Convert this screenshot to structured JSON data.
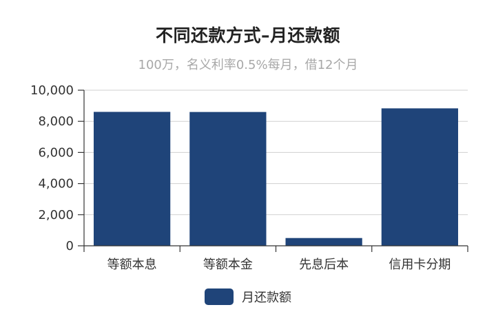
{
  "chart_data": {
    "type": "bar",
    "title": "不同还款方式–月还款额",
    "subtitle": "100万，名义利率0.5%每月，借12个月",
    "categories": [
      "等额本息",
      "等额本金",
      "先息后本",
      "信用卡分期"
    ],
    "series": [
      {
        "name": "月还款额",
        "values": [
          8607,
          8600,
          500,
          8833
        ],
        "color": "#1f4479"
      }
    ],
    "ylim": [
      0,
      10000
    ],
    "yticks": [
      0,
      2000,
      4000,
      6000,
      8000,
      10000
    ],
    "ytick_labels": [
      "0",
      "2,000",
      "4,000",
      "6,000",
      "8,000",
      "10,000"
    ],
    "grid": true,
    "legend_position": "bottom"
  }
}
